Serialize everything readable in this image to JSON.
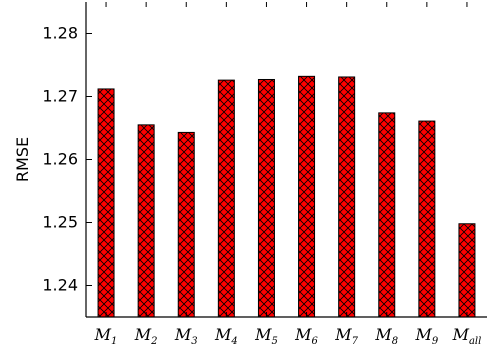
{
  "chart_data": {
    "type": "bar",
    "title": "",
    "xlabel": "",
    "ylabel": "RMSE",
    "ylim": [
      1.235,
      1.285
    ],
    "yticks": [
      "1.24",
      "1.25",
      "1.26",
      "1.27",
      "1.28"
    ],
    "yticks_values": [
      1.24,
      1.25,
      1.26,
      1.27,
      1.28
    ],
    "categories": [
      {
        "base": "M",
        "sub": "1"
      },
      {
        "base": "M",
        "sub": "2"
      },
      {
        "base": "M",
        "sub": "3"
      },
      {
        "base": "M",
        "sub": "4"
      },
      {
        "base": "M",
        "sub": "5"
      },
      {
        "base": "M",
        "sub": "6"
      },
      {
        "base": "M",
        "sub": "7"
      },
      {
        "base": "M",
        "sub": "8"
      },
      {
        "base": "M",
        "sub": "9"
      },
      {
        "base": "M",
        "sub": "all"
      }
    ],
    "values": [
      1.2712,
      1.2655,
      1.2643,
      1.2726,
      1.2727,
      1.2732,
      1.2731,
      1.2674,
      1.2661,
      1.2498
    ],
    "bar_color": "#ff0000",
    "hatch": "crosshatch",
    "grid": false,
    "legend": "none"
  }
}
